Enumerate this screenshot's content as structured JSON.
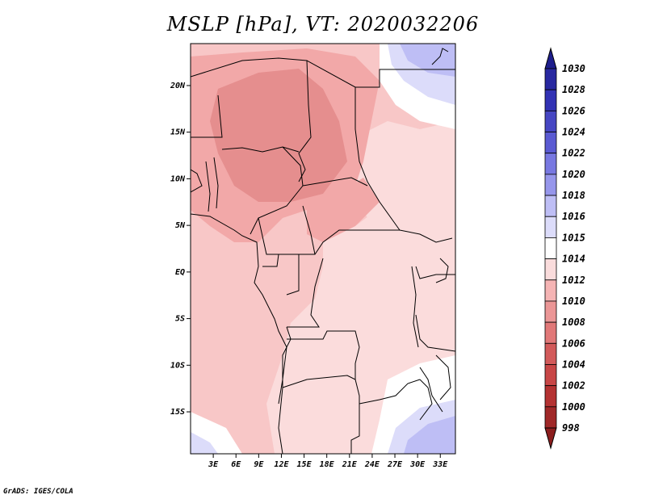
{
  "title": "MSLP [hPa], VT: 2020032206",
  "credit": "GrADS: IGES/COLA",
  "map": {
    "lat_labels": [
      "20N",
      "15N",
      "10N",
      "5N",
      "EQ",
      "5S",
      "10S",
      "15S"
    ],
    "lat_values": [
      20,
      15,
      10,
      5,
      0,
      -5,
      -10,
      -15
    ],
    "lon_labels": [
      "3E",
      "6E",
      "9E",
      "12E",
      "15E",
      "18E",
      "21E",
      "24E",
      "27E",
      "30E",
      "33E"
    ],
    "lon_values": [
      3,
      6,
      9,
      12,
      15,
      18,
      21,
      24,
      27,
      30,
      33
    ],
    "lat_range": [
      -19.5,
      24.5
    ],
    "lon_range": [
      0,
      35
    ]
  },
  "colorbar": {
    "levels": [
      "1030",
      "1028",
      "1026",
      "1024",
      "1022",
      "1020",
      "1018",
      "1016",
      "1015",
      "1014",
      "1012",
      "1010",
      "1008",
      "1006",
      "1004",
      "1002",
      "1000",
      "998"
    ],
    "colors": [
      "#1e1e8c",
      "#2828a0",
      "#3232b4",
      "#4646c3",
      "#5a5ad2",
      "#7878e1",
      "#9696eb",
      "#bebef5",
      "#dcdcfa",
      "#ffffff",
      "#fadcdc",
      "#f5b4b4",
      "#eb9696",
      "#e17878",
      "#d25a5a",
      "#c84646",
      "#b43232",
      "#a02828",
      "#8c1e1e"
    ],
    "top_color": "#1e1e8c",
    "bottom_color": "#8c1e1e"
  },
  "colors": {
    "base": "#f8c7c7",
    "light": "#fbdcdc",
    "mid": "#f2a8a8",
    "dark": "#e58e8e",
    "white": "#ffffff",
    "blue_light": "#dcdcfa",
    "blue": "#bebef5"
  }
}
